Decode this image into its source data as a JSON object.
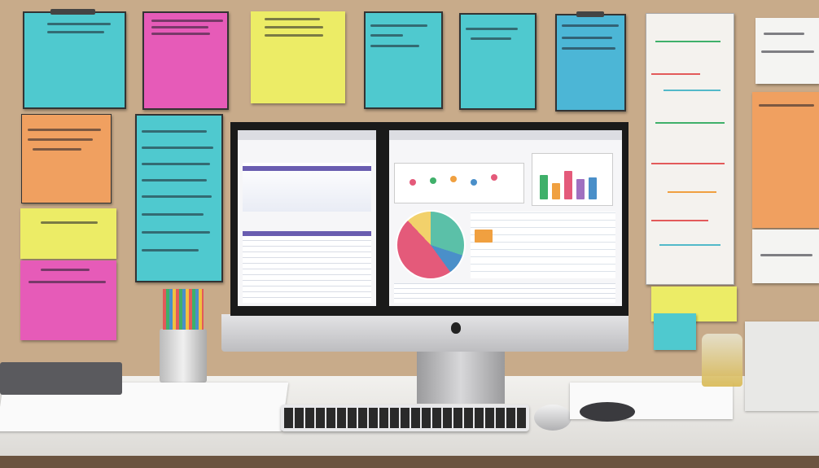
{
  "scene": {
    "description_colors": {
      "wall": "#c8ab8a",
      "note_cyan": "#4fc9cf",
      "note_pink": "#e65bb8",
      "note_yellow": "#ecec66",
      "note_orange": "#f0a060",
      "note_blue": "#4cb6d6",
      "desk": "#ecebe8",
      "monitor_frame": "#1a1a1a",
      "monitor_chin": "#cfcfd1",
      "pie_slices": [
        "#e45a7a",
        "#5bc0a8",
        "#f2d16b",
        "#4a8fc9"
      ]
    },
    "icons": [
      "apple-logo-icon",
      "pen-cup-icon",
      "keyboard-icon",
      "mouse-icon"
    ]
  }
}
